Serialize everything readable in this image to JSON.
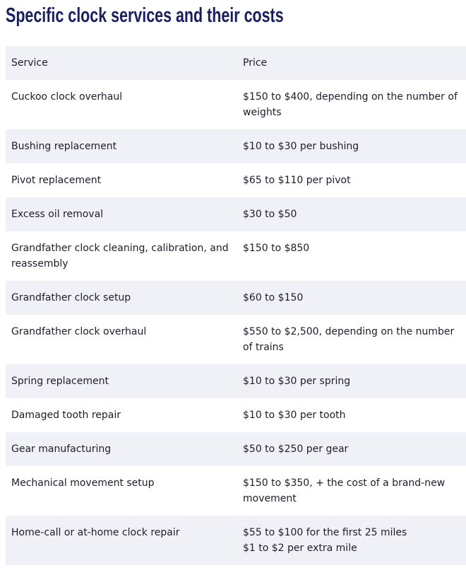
{
  "title": "Specific clock services and their costs",
  "table": {
    "header": [
      "Service",
      "Price"
    ],
    "rows": [
      [
        "Cuckoo clock overhaul",
        "$150 to $400, depending on the number of weights"
      ],
      [
        "Bushing replacement",
        "$10 to $30 per bushing"
      ],
      [
        "Pivot replacement",
        "$65 to $110 per pivot"
      ],
      [
        "Excess oil removal",
        "$30 to $50"
      ],
      [
        "Grandfather clock cleaning, calibration, and reassembly",
        "$150 to $850"
      ],
      [
        "Grandfather clock setup",
        "$60 to $150"
      ],
      [
        "Grandfather clock overhaul",
        "$550 to $2,500, depending on the number of trains"
      ],
      [
        "Spring replacement",
        "$10 to $30 per spring"
      ],
      [
        "Damaged tooth repair",
        "$10 to $30 per tooth"
      ],
      [
        "Gear manufacturing",
        "$50 to $250 per gear"
      ],
      [
        "Mechanical movement setup",
        "$150 to $350, + the cost of a brand-new movement"
      ],
      [
        "Home-call or at-home clock repair",
        [
          "$55 to $100 for the first 25 miles",
          "$1 to $2 per extra mile"
        ]
      ]
    ]
  }
}
